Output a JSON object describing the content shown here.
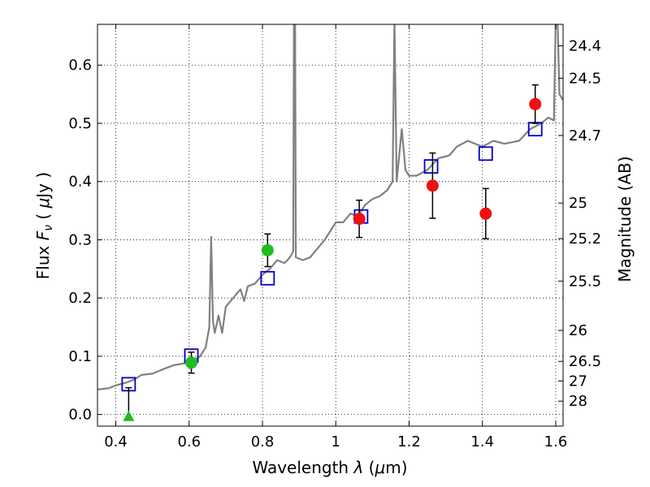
{
  "chart_data": {
    "type": "scatter",
    "xlabel_parts": [
      "Wavelength  ",
      "λ",
      " (",
      "μ",
      "m)"
    ],
    "ylabel_parts": [
      "Flux  ",
      "F",
      "ν",
      "  ( ",
      "μ",
      "Jy )"
    ],
    "y2label": "Magnitude (AB)",
    "xlim": [
      0.35,
      1.62
    ],
    "ylim": [
      -0.02,
      0.67
    ],
    "grid": true,
    "x_ticks": [
      {
        "value": 0.4,
        "label": "0.4"
      },
      {
        "value": 0.6,
        "label": "0.6"
      },
      {
        "value": 0.8,
        "label": "0.8"
      },
      {
        "value": 1.0,
        "label": "1"
      },
      {
        "value": 1.2,
        "label": "1.2"
      },
      {
        "value": 1.4,
        "label": "1.4"
      },
      {
        "value": 1.6,
        "label": "1.6"
      }
    ],
    "y_ticks": [
      {
        "value": 0.0,
        "label": "0.0"
      },
      {
        "value": 0.1,
        "label": "0.1"
      },
      {
        "value": 0.2,
        "label": "0.2"
      },
      {
        "value": 0.3,
        "label": "0.3"
      },
      {
        "value": 0.4,
        "label": "0.4"
      },
      {
        "value": 0.5,
        "label": "0.5"
      },
      {
        "value": 0.6,
        "label": "0.6"
      }
    ],
    "y2_ticks": [
      {
        "flux": 0.6331,
        "label": "24.4"
      },
      {
        "flux": 0.5774,
        "label": "24.5"
      },
      {
        "flux": 0.4791,
        "label": "24.7"
      },
      {
        "flux": 0.3631,
        "label": "25"
      },
      {
        "flux": 0.302,
        "label": "25.2"
      },
      {
        "flux": 0.2291,
        "label": "25.5"
      },
      {
        "flux": 0.1445,
        "label": "26"
      },
      {
        "flux": 0.0912,
        "label": "26.5"
      },
      {
        "flux": 0.0575,
        "label": "27"
      },
      {
        "flux": 0.0229,
        "label": "28"
      }
    ],
    "series": [
      {
        "kind": "spectrum",
        "color": "#808080",
        "points": [
          [
            0.35,
            0.043
          ],
          [
            0.38,
            0.045
          ],
          [
            0.4,
            0.05
          ],
          [
            0.43,
            0.055
          ],
          [
            0.45,
            0.06
          ],
          [
            0.47,
            0.068
          ],
          [
            0.5,
            0.07
          ],
          [
            0.53,
            0.078
          ],
          [
            0.56,
            0.085
          ],
          [
            0.59,
            0.088
          ],
          [
            0.61,
            0.092
          ],
          [
            0.63,
            0.1
          ],
          [
            0.645,
            0.115
          ],
          [
            0.655,
            0.15
          ],
          [
            0.66,
            0.305
          ],
          [
            0.665,
            0.16
          ],
          [
            0.67,
            0.14
          ],
          [
            0.68,
            0.17
          ],
          [
            0.69,
            0.14
          ],
          [
            0.7,
            0.185
          ],
          [
            0.72,
            0.2
          ],
          [
            0.74,
            0.215
          ],
          [
            0.75,
            0.195
          ],
          [
            0.76,
            0.22
          ],
          [
            0.78,
            0.225
          ],
          [
            0.8,
            0.24
          ],
          [
            0.82,
            0.25
          ],
          [
            0.84,
            0.265
          ],
          [
            0.86,
            0.26
          ],
          [
            0.875,
            0.27
          ],
          [
            0.884,
            0.28
          ],
          [
            0.886,
            0.68
          ],
          [
            0.889,
            0.68
          ],
          [
            0.891,
            0.27
          ],
          [
            0.91,
            0.265
          ],
          [
            0.93,
            0.27
          ],
          [
            0.95,
            0.285
          ],
          [
            0.97,
            0.3
          ],
          [
            0.99,
            0.32
          ],
          [
            1.0,
            0.33
          ],
          [
            1.02,
            0.33
          ],
          [
            1.04,
            0.345
          ],
          [
            1.06,
            0.34
          ],
          [
            1.08,
            0.36
          ],
          [
            1.1,
            0.37
          ],
          [
            1.12,
            0.375
          ],
          [
            1.14,
            0.385
          ],
          [
            1.155,
            0.4
          ],
          [
            1.16,
            0.68
          ],
          [
            1.166,
            0.4
          ],
          [
            1.18,
            0.49
          ],
          [
            1.19,
            0.42
          ],
          [
            1.2,
            0.41
          ],
          [
            1.22,
            0.41
          ],
          [
            1.25,
            0.42
          ],
          [
            1.28,
            0.44
          ],
          [
            1.31,
            0.445
          ],
          [
            1.33,
            0.46
          ],
          [
            1.36,
            0.47
          ],
          [
            1.4,
            0.46
          ],
          [
            1.43,
            0.47
          ],
          [
            1.46,
            0.465
          ],
          [
            1.5,
            0.47
          ],
          [
            1.53,
            0.49
          ],
          [
            1.56,
            0.5
          ],
          [
            1.58,
            0.51
          ],
          [
            1.595,
            0.505
          ],
          [
            1.6,
            0.68
          ],
          [
            1.605,
            0.68
          ],
          [
            1.61,
            0.55
          ],
          [
            1.62,
            0.54
          ]
        ]
      },
      {
        "kind": "model_photometry",
        "marker": "square",
        "color": "#0000cc",
        "points": [
          [
            0.435,
            0.052
          ],
          [
            0.606,
            0.101
          ],
          [
            0.814,
            0.234
          ],
          [
            1.069,
            0.34
          ],
          [
            1.26,
            0.426
          ],
          [
            1.409,
            0.448
          ],
          [
            1.544,
            0.49
          ]
        ]
      },
      {
        "kind": "observed_red",
        "marker": "circle",
        "color": "#ee1111",
        "points": [
          {
            "x": 1.064,
            "y": 0.336,
            "yerr": [
              0.032,
              0.032
            ]
          },
          {
            "x": 1.264,
            "y": 0.393,
            "yerr": [
              0.056,
              0.056
            ]
          },
          {
            "x": 1.409,
            "y": 0.345,
            "yerr": [
              0.043,
              0.043
            ]
          },
          {
            "x": 1.544,
            "y": 0.533,
            "yerr": [
              0.033,
              0.033
            ]
          }
        ]
      },
      {
        "kind": "observed_green",
        "marker": "circle",
        "color": "#22bb22",
        "points": [
          {
            "x": 0.606,
            "y": 0.089,
            "yerr": [
              0.018,
              0.018
            ]
          },
          {
            "x": 0.814,
            "y": 0.282,
            "yerr": [
              0.028,
              0.028
            ]
          }
        ]
      },
      {
        "kind": "upper_limit_green",
        "marker": "triangle",
        "color": "#22bb22",
        "points": [
          {
            "x": 0.435,
            "y": -0.003,
            "ytop": 0.046
          }
        ]
      }
    ]
  }
}
